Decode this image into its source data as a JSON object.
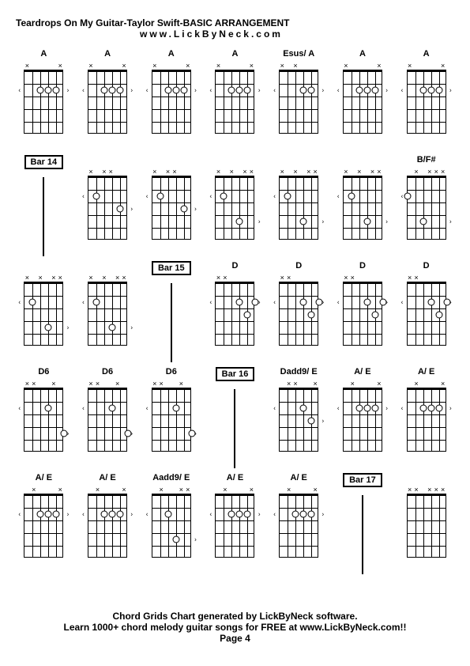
{
  "header": {
    "title": "Teardrops On My Guitar-Taylor Swift-BASIC ARRANGEMENT",
    "subtitle": "www.LickByNeck.com"
  },
  "footer": {
    "line1": "Chord Grids Chart generated by LickByNeck software.",
    "line2": "Learn 1000+ chord melody guitar songs for FREE at www.LickByNeck.com!!",
    "page": "Page 4"
  },
  "colors": {
    "background": "#ffffff",
    "text": "#000000",
    "grid": "#000000"
  },
  "layout": {
    "rows": 5,
    "cols": 7,
    "frets": 5,
    "strings": 6
  },
  "cells": [
    {
      "type": "chord",
      "label": "A",
      "marks": [
        "x",
        "",
        "",
        "",
        "",
        "x"
      ],
      "dots": [
        {
          "s": 4,
          "f": 2
        },
        {
          "s": 3,
          "f": 2
        },
        {
          "s": 2,
          "f": 2
        }
      ],
      "nut": true,
      "leftMarks": [
        {
          "f": 2
        }
      ],
      "rightMarks": [
        {
          "f": 2
        }
      ]
    },
    {
      "type": "chord",
      "label": "A",
      "marks": [
        "x",
        "",
        "",
        "",
        "",
        "x"
      ],
      "dots": [
        {
          "s": 4,
          "f": 2
        },
        {
          "s": 3,
          "f": 2
        },
        {
          "s": 2,
          "f": 2
        }
      ],
      "nut": true,
      "leftMarks": [
        {
          "f": 2
        }
      ],
      "rightMarks": [
        {
          "f": 2
        }
      ]
    },
    {
      "type": "chord",
      "label": "A",
      "marks": [
        "x",
        "",
        "",
        "",
        "",
        "x"
      ],
      "dots": [
        {
          "s": 4,
          "f": 2
        },
        {
          "s": 3,
          "f": 2
        },
        {
          "s": 2,
          "f": 2
        }
      ],
      "nut": true,
      "leftMarks": [
        {
          "f": 2
        }
      ],
      "rightMarks": [
        {
          "f": 2
        }
      ]
    },
    {
      "type": "chord",
      "label": "A",
      "marks": [
        "x",
        "",
        "",
        "",
        "",
        "x"
      ],
      "dots": [
        {
          "s": 4,
          "f": 2
        },
        {
          "s": 3,
          "f": 2
        },
        {
          "s": 2,
          "f": 2
        }
      ],
      "nut": true,
      "leftMarks": [
        {
          "f": 2
        }
      ],
      "rightMarks": [
        {
          "f": 2
        }
      ]
    },
    {
      "type": "chord",
      "label": "Esus/ A",
      "marks": [
        "x",
        "",
        "x",
        "",
        "",
        ""
      ],
      "dots": [
        {
          "s": 3,
          "f": 2
        },
        {
          "s": 2,
          "f": 2
        }
      ],
      "nut": true,
      "leftMarks": [
        {
          "f": 2
        }
      ],
      "rightMarks": [
        {
          "f": 2
        }
      ]
    },
    {
      "type": "chord",
      "label": "A",
      "marks": [
        "x",
        "",
        "",
        "",
        "",
        "x"
      ],
      "dots": [
        {
          "s": 4,
          "f": 2
        },
        {
          "s": 3,
          "f": 2
        },
        {
          "s": 2,
          "f": 2
        }
      ],
      "nut": true,
      "leftMarks": [
        {
          "f": 2
        }
      ],
      "rightMarks": [
        {
          "f": 2
        }
      ]
    },
    {
      "type": "chord",
      "label": "A",
      "marks": [
        "x",
        "",
        "",
        "",
        "",
        "x"
      ],
      "dots": [
        {
          "s": 4,
          "f": 2
        },
        {
          "s": 3,
          "f": 2
        },
        {
          "s": 2,
          "f": 2
        }
      ],
      "nut": true,
      "leftMarks": [
        {
          "f": 2
        }
      ],
      "rightMarks": [
        {
          "f": 2
        }
      ]
    },
    {
      "type": "bar",
      "label": "Bar 14"
    },
    {
      "type": "chord",
      "label": "",
      "marks": [
        "x",
        "",
        "x",
        "x",
        "",
        ""
      ],
      "dots": [
        {
          "s": 5,
          "f": 2
        },
        {
          "s": 2,
          "f": 3
        }
      ],
      "nut": true,
      "leftMarks": [
        {
          "f": 2
        }
      ],
      "rightMarks": [
        {
          "f": 3
        }
      ]
    },
    {
      "type": "chord",
      "label": "",
      "marks": [
        "x",
        "",
        "x",
        "x",
        "",
        ""
      ],
      "dots": [
        {
          "s": 5,
          "f": 2
        },
        {
          "s": 2,
          "f": 3
        }
      ],
      "nut": true,
      "leftMarks": [
        {
          "f": 2
        }
      ],
      "rightMarks": [
        {
          "f": 3
        }
      ]
    },
    {
      "type": "chord",
      "label": "",
      "marks": [
        "x",
        "",
        "x",
        "",
        "x",
        "x"
      ],
      "dots": [
        {
          "s": 5,
          "f": 2
        },
        {
          "s": 3,
          "f": 4
        }
      ],
      "nut": true,
      "leftMarks": [
        {
          "f": 2
        }
      ],
      "rightMarks": [
        {
          "f": 4
        }
      ]
    },
    {
      "type": "chord",
      "label": "",
      "marks": [
        "x",
        "",
        "x",
        "",
        "x",
        "x"
      ],
      "dots": [
        {
          "s": 5,
          "f": 2
        },
        {
          "s": 3,
          "f": 4
        }
      ],
      "nut": true,
      "leftMarks": [
        {
          "f": 2
        }
      ],
      "rightMarks": [
        {
          "f": 4
        }
      ]
    },
    {
      "type": "chord",
      "label": "",
      "marks": [
        "x",
        "",
        "x",
        "",
        "x",
        "x"
      ],
      "dots": [
        {
          "s": 5,
          "f": 2
        },
        {
          "s": 3,
          "f": 4
        }
      ],
      "nut": true,
      "leftMarks": [
        {
          "f": 2
        }
      ],
      "rightMarks": [
        {
          "f": 4
        }
      ]
    },
    {
      "type": "chord",
      "label": "B/F#",
      "marks": [
        "",
        "x",
        "",
        "x",
        "x",
        "x"
      ],
      "dots": [
        {
          "s": 6,
          "f": 2
        },
        {
          "s": 4,
          "f": 4
        }
      ],
      "nut": true,
      "leftMarks": [
        {
          "f": 2
        }
      ],
      "rightMarks": [
        {
          "f": 4
        }
      ]
    },
    {
      "type": "chord",
      "label": "",
      "marks": [
        "x",
        "",
        "x",
        "",
        "x",
        "x"
      ],
      "dots": [
        {
          "s": 5,
          "f": 2
        },
        {
          "s": 3,
          "f": 4
        }
      ],
      "nut": true,
      "leftMarks": [
        {
          "f": 2
        }
      ],
      "rightMarks": [
        {
          "f": 4
        }
      ]
    },
    {
      "type": "chord",
      "label": "",
      "marks": [
        "x",
        "",
        "x",
        "",
        "x",
        "x"
      ],
      "dots": [
        {
          "s": 5,
          "f": 2
        },
        {
          "s": 3,
          "f": 4
        }
      ],
      "nut": true,
      "leftMarks": [
        {
          "f": 2
        }
      ],
      "rightMarks": [
        {
          "f": 4
        }
      ]
    },
    {
      "type": "bar",
      "label": "Bar 15"
    },
    {
      "type": "chord",
      "label": "D",
      "marks": [
        "x",
        "x",
        "",
        "",
        "",
        ""
      ],
      "dots": [
        {
          "s": 3,
          "f": 2
        },
        {
          "s": 2,
          "f": 3
        },
        {
          "s": 1,
          "f": 2
        }
      ],
      "nut": true,
      "leftMarks": [
        {
          "f": 2
        }
      ],
      "rightMarks": [
        {
          "f": 2
        }
      ]
    },
    {
      "type": "chord",
      "label": "D",
      "marks": [
        "x",
        "x",
        "",
        "",
        "",
        ""
      ],
      "dots": [
        {
          "s": 3,
          "f": 2
        },
        {
          "s": 2,
          "f": 3
        },
        {
          "s": 1,
          "f": 2
        }
      ],
      "nut": true,
      "leftMarks": [
        {
          "f": 2
        }
      ],
      "rightMarks": [
        {
          "f": 2
        }
      ]
    },
    {
      "type": "chord",
      "label": "D",
      "marks": [
        "x",
        "x",
        "",
        "",
        "",
        ""
      ],
      "dots": [
        {
          "s": 3,
          "f": 2
        },
        {
          "s": 2,
          "f": 3
        },
        {
          "s": 1,
          "f": 2
        }
      ],
      "nut": true,
      "leftMarks": [
        {
          "f": 2
        }
      ],
      "rightMarks": [
        {
          "f": 2
        }
      ]
    },
    {
      "type": "chord",
      "label": "D",
      "marks": [
        "x",
        "x",
        "",
        "",
        "",
        ""
      ],
      "dots": [
        {
          "s": 3,
          "f": 2
        },
        {
          "s": 2,
          "f": 3
        },
        {
          "s": 1,
          "f": 2
        }
      ],
      "nut": true,
      "leftMarks": [
        {
          "f": 2
        }
      ],
      "rightMarks": [
        {
          "f": 2
        }
      ]
    },
    {
      "type": "chord",
      "label": "D6",
      "marks": [
        "x",
        "x",
        "",
        "",
        "x",
        ""
      ],
      "dots": [
        {
          "s": 3,
          "f": 2
        },
        {
          "s": 1,
          "f": 4
        }
      ],
      "nut": true,
      "leftMarks": [
        {
          "f": 2
        }
      ],
      "rightMarks": [
        {
          "f": 4
        }
      ]
    },
    {
      "type": "chord",
      "label": "D6",
      "marks": [
        "x",
        "x",
        "",
        "",
        "x",
        ""
      ],
      "dots": [
        {
          "s": 3,
          "f": 2
        },
        {
          "s": 1,
          "f": 4
        }
      ],
      "nut": true,
      "leftMarks": [
        {
          "f": 2
        }
      ],
      "rightMarks": [
        {
          "f": 4
        }
      ]
    },
    {
      "type": "chord",
      "label": "D6",
      "marks": [
        "x",
        "x",
        "",
        "",
        "x",
        ""
      ],
      "dots": [
        {
          "s": 3,
          "f": 2
        },
        {
          "s": 1,
          "f": 4
        }
      ],
      "nut": true,
      "leftMarks": [
        {
          "f": 2
        }
      ],
      "rightMarks": [
        {
          "f": 4
        }
      ]
    },
    {
      "type": "bar",
      "label": "Bar 16"
    },
    {
      "type": "chord",
      "label": "Dadd9/ E",
      "marks": [
        "",
        "x",
        "x",
        "",
        "",
        "x"
      ],
      "dots": [
        {
          "s": 3,
          "f": 2
        },
        {
          "s": 2,
          "f": 3
        }
      ],
      "nut": true,
      "leftMarks": [
        {
          "f": 2
        }
      ],
      "rightMarks": [
        {
          "f": 3
        }
      ]
    },
    {
      "type": "chord",
      "label": "A/ E",
      "marks": [
        "",
        "x",
        "",
        "",
        "",
        "x"
      ],
      "dots": [
        {
          "s": 4,
          "f": 2
        },
        {
          "s": 3,
          "f": 2
        },
        {
          "s": 2,
          "f": 2
        }
      ],
      "nut": true,
      "leftMarks": [
        {
          "f": 2
        }
      ],
      "rightMarks": [
        {
          "f": 2
        }
      ]
    },
    {
      "type": "chord",
      "label": "A/ E",
      "marks": [
        "",
        "x",
        "",
        "",
        "",
        "x"
      ],
      "dots": [
        {
          "s": 4,
          "f": 2
        },
        {
          "s": 3,
          "f": 2
        },
        {
          "s": 2,
          "f": 2
        }
      ],
      "nut": true,
      "leftMarks": [
        {
          "f": 2
        }
      ],
      "rightMarks": [
        {
          "f": 2
        }
      ]
    },
    {
      "type": "chord",
      "label": "A/ E",
      "marks": [
        "",
        "x",
        "",
        "",
        "",
        "x"
      ],
      "dots": [
        {
          "s": 4,
          "f": 2
        },
        {
          "s": 3,
          "f": 2
        },
        {
          "s": 2,
          "f": 2
        }
      ],
      "nut": true,
      "leftMarks": [
        {
          "f": 2
        }
      ],
      "rightMarks": [
        {
          "f": 2
        }
      ]
    },
    {
      "type": "chord",
      "label": "A/ E",
      "marks": [
        "",
        "x",
        "",
        "",
        "",
        "x"
      ],
      "dots": [
        {
          "s": 4,
          "f": 2
        },
        {
          "s": 3,
          "f": 2
        },
        {
          "s": 2,
          "f": 2
        }
      ],
      "nut": true,
      "leftMarks": [
        {
          "f": 2
        }
      ],
      "rightMarks": [
        {
          "f": 2
        }
      ]
    },
    {
      "type": "chord",
      "label": "Aadd9/ E",
      "marks": [
        "",
        "x",
        "",
        "",
        "x",
        "x"
      ],
      "dots": [
        {
          "s": 4,
          "f": 2
        },
        {
          "s": 3,
          "f": 4
        }
      ],
      "nut": true,
      "leftMarks": [
        {
          "f": 2
        }
      ],
      "rightMarks": [
        {
          "f": 4
        }
      ]
    },
    {
      "type": "chord",
      "label": "A/ E",
      "marks": [
        "",
        "x",
        "",
        "",
        "",
        "x"
      ],
      "dots": [
        {
          "s": 4,
          "f": 2
        },
        {
          "s": 3,
          "f": 2
        },
        {
          "s": 2,
          "f": 2
        }
      ],
      "nut": true,
      "leftMarks": [
        {
          "f": 2
        }
      ],
      "rightMarks": [
        {
          "f": 2
        }
      ]
    },
    {
      "type": "chord",
      "label": "A/ E",
      "marks": [
        "",
        "x",
        "",
        "",
        "",
        "x"
      ],
      "dots": [
        {
          "s": 4,
          "f": 2
        },
        {
          "s": 3,
          "f": 2
        },
        {
          "s": 2,
          "f": 2
        }
      ],
      "nut": true,
      "leftMarks": [
        {
          "f": 2
        }
      ],
      "rightMarks": [
        {
          "f": 2
        }
      ]
    },
    {
      "type": "bar",
      "label": "Bar 17"
    },
    {
      "type": "chord",
      "label": "",
      "marks": [
        "x",
        "x",
        "",
        "x",
        "x",
        "x"
      ],
      "dots": [],
      "nut": true,
      "leftMarks": [],
      "rightMarks": []
    }
  ]
}
